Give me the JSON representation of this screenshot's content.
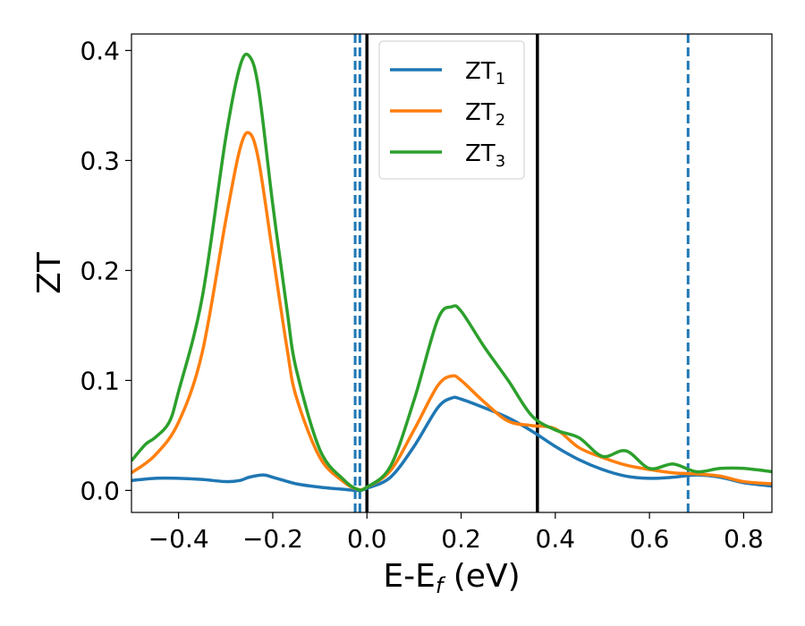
{
  "chart_data": {
    "type": "line",
    "title": "",
    "xlabel": "E-E_f (eV)",
    "xlabel_main": "E-E",
    "xlabel_sub": "f",
    "xlabel_tail": " (eV)",
    "ylabel": "ZT",
    "xlim": [
      -0.5,
      0.86
    ],
    "ylim": [
      -0.02,
      0.415
    ],
    "xticks": [
      -0.4,
      -0.2,
      0.0,
      0.2,
      0.4,
      0.6,
      0.8
    ],
    "xtick_labels": [
      "−0.4",
      "−0.2",
      "0.0",
      "0.2",
      "0.4",
      "0.6",
      "0.8"
    ],
    "yticks": [
      0.0,
      0.1,
      0.2,
      0.3,
      0.4
    ],
    "ytick_labels": [
      "0.0",
      "0.1",
      "0.2",
      "0.3",
      "0.4"
    ],
    "grid": false,
    "legend_position": "top-center",
    "series": [
      {
        "name": "ZT1",
        "name_main": "ZT",
        "name_sub": "1",
        "color": "#1f77b4",
        "x": [
          -0.5,
          -0.45,
          -0.4,
          -0.35,
          -0.3,
          -0.27,
          -0.25,
          -0.22,
          -0.2,
          -0.15,
          -0.1,
          -0.05,
          -0.02,
          0.0,
          0.05,
          0.1,
          0.15,
          0.18,
          0.2,
          0.25,
          0.3,
          0.35,
          0.4,
          0.45,
          0.5,
          0.55,
          0.6,
          0.65,
          0.7,
          0.75,
          0.8,
          0.86
        ],
        "y": [
          0.009,
          0.011,
          0.011,
          0.01,
          0.008,
          0.009,
          0.012,
          0.014,
          0.012,
          0.006,
          0.003,
          0.001,
          0.0,
          0.002,
          0.012,
          0.04,
          0.075,
          0.084,
          0.083,
          0.075,
          0.066,
          0.054,
          0.04,
          0.028,
          0.019,
          0.013,
          0.011,
          0.012,
          0.014,
          0.012,
          0.007,
          0.004
        ]
      },
      {
        "name": "ZT2",
        "name_main": "ZT",
        "name_sub": "2",
        "color": "#ff7f0e",
        "x": [
          -0.5,
          -0.45,
          -0.4,
          -0.35,
          -0.3,
          -0.27,
          -0.25,
          -0.23,
          -0.2,
          -0.17,
          -0.15,
          -0.1,
          -0.05,
          -0.02,
          0.0,
          0.05,
          0.1,
          0.15,
          0.18,
          0.2,
          0.25,
          0.3,
          0.35,
          0.4,
          0.45,
          0.5,
          0.55,
          0.6,
          0.65,
          0.7,
          0.75,
          0.8,
          0.86
        ],
        "y": [
          0.016,
          0.032,
          0.062,
          0.125,
          0.245,
          0.31,
          0.325,
          0.3,
          0.215,
          0.13,
          0.085,
          0.03,
          0.008,
          0.001,
          0.003,
          0.018,
          0.055,
          0.095,
          0.104,
          0.1,
          0.08,
          0.063,
          0.059,
          0.056,
          0.039,
          0.03,
          0.023,
          0.019,
          0.016,
          0.015,
          0.013,
          0.008,
          0.006
        ]
      },
      {
        "name": "ZT3",
        "name_main": "ZT",
        "name_sub": "3",
        "color": "#2ca02c",
        "x": [
          -0.5,
          -0.47,
          -0.45,
          -0.42,
          -0.4,
          -0.35,
          -0.3,
          -0.27,
          -0.25,
          -0.23,
          -0.2,
          -0.17,
          -0.15,
          -0.1,
          -0.05,
          -0.02,
          0.0,
          0.05,
          0.1,
          0.15,
          0.18,
          0.2,
          0.25,
          0.3,
          0.35,
          0.4,
          0.45,
          0.5,
          0.55,
          0.6,
          0.65,
          0.7,
          0.75,
          0.8,
          0.86
        ],
        "y": [
          0.027,
          0.042,
          0.048,
          0.062,
          0.09,
          0.175,
          0.32,
          0.385,
          0.395,
          0.365,
          0.26,
          0.165,
          0.11,
          0.037,
          0.01,
          0.001,
          0.003,
          0.022,
          0.082,
          0.155,
          0.167,
          0.163,
          0.13,
          0.1,
          0.068,
          0.055,
          0.048,
          0.031,
          0.036,
          0.02,
          0.024,
          0.017,
          0.02,
          0.02,
          0.017
        ]
      }
    ],
    "vlines": [
      {
        "x": -0.025,
        "style": "dashed",
        "color": "#1f77b4"
      },
      {
        "x": -0.015,
        "style": "dashed",
        "color": "#1f77b4"
      },
      {
        "x": 0.0,
        "style": "solid",
        "color": "#000000"
      },
      {
        "x": 0.362,
        "style": "solid",
        "color": "#000000"
      },
      {
        "x": 0.682,
        "style": "dashed",
        "color": "#1f77b4"
      }
    ]
  }
}
